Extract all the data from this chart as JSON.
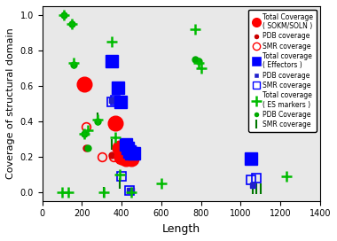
{
  "title": "",
  "xlabel": "Length",
  "ylabel": "Coverage of structural domain",
  "xlim": [
    0,
    1400
  ],
  "ylim": [
    -0.05,
    1.05
  ],
  "xticks": [
    0,
    200,
    400,
    600,
    800,
    1000,
    1200,
    1400
  ],
  "yticks": [
    0.0,
    0.2,
    0.4,
    0.6,
    0.8,
    1.0
  ],
  "sokm_total": [
    [
      210,
      0.61
    ],
    [
      370,
      0.39
    ],
    [
      390,
      0.25
    ],
    [
      400,
      0.2
    ],
    [
      420,
      0.19
    ],
    [
      430,
      0.2
    ],
    [
      450,
      0.19
    ]
  ],
  "sokm_pdb": [
    [
      220,
      0.25
    ],
    [
      350,
      0.21
    ],
    [
      380,
      0.2
    ],
    [
      400,
      0.24
    ],
    [
      410,
      0.2
    ],
    [
      430,
      0.19
    ]
  ],
  "sokm_smr": [
    [
      220,
      0.37
    ],
    [
      300,
      0.2
    ],
    [
      360,
      0.2
    ],
    [
      390,
      0.19
    ],
    [
      400,
      0.25
    ],
    [
      415,
      0.2
    ],
    [
      440,
      0.19
    ]
  ],
  "eff_total": [
    [
      350,
      0.74
    ],
    [
      380,
      0.59
    ],
    [
      395,
      0.51
    ],
    [
      420,
      0.27
    ],
    [
      430,
      0.25
    ],
    [
      440,
      0.23
    ],
    [
      450,
      0.22
    ],
    [
      460,
      0.22
    ],
    [
      1050,
      0.19
    ]
  ],
  "eff_pdb": [
    [
      350,
      0.52
    ],
    [
      380,
      0.51
    ],
    [
      400,
      0.26
    ],
    [
      420,
      0.24
    ],
    [
      440,
      0.01
    ],
    [
      450,
      0.01
    ],
    [
      1060,
      0.04
    ]
  ],
  "eff_smr": [
    [
      350,
      0.51
    ],
    [
      370,
      0.52
    ],
    [
      400,
      0.09
    ],
    [
      420,
      0.24
    ],
    [
      440,
      0.01
    ],
    [
      1050,
      0.07
    ],
    [
      1080,
      0.08
    ]
  ],
  "es_total": [
    [
      100,
      0.0
    ],
    [
      130,
      0.0
    ],
    [
      110,
      1.0
    ],
    [
      150,
      0.95
    ],
    [
      160,
      0.73
    ],
    [
      210,
      0.33
    ],
    [
      230,
      0.35
    ],
    [
      280,
      0.41
    ],
    [
      310,
      0.0
    ],
    [
      350,
      0.85
    ],
    [
      370,
      0.31
    ],
    [
      390,
      0.1
    ],
    [
      450,
      0.0
    ],
    [
      600,
      0.05
    ],
    [
      770,
      0.92
    ],
    [
      790,
      0.73
    ],
    [
      800,
      0.7
    ],
    [
      1230,
      0.09
    ]
  ],
  "es_pdb": [
    [
      110,
      1.0
    ],
    [
      150,
      0.95
    ],
    [
      160,
      0.72
    ],
    [
      210,
      0.33
    ],
    [
      230,
      0.25
    ],
    [
      280,
      0.4
    ],
    [
      770,
      0.75
    ],
    [
      790,
      0.74
    ]
  ],
  "es_smr": [
    [
      280,
      0.42
    ],
    [
      310,
      0.0
    ],
    [
      350,
      0.27
    ],
    [
      390,
      0.05
    ],
    [
      1060,
      0.02
    ],
    [
      1080,
      0.02
    ],
    [
      1100,
      0.02
    ]
  ],
  "red_total": "#FF0000",
  "red_pdb": "#CC0000",
  "red_smr_edge": "#FF0000",
  "blue_total": "#0000FF",
  "blue_pdb": "#2222CC",
  "blue_smr_edge": "#0000FF",
  "green_total": "#00BB00",
  "green_pdb": "#00AA00",
  "green_smr_edge": "#007700",
  "bg_color": "#E8E8E8"
}
